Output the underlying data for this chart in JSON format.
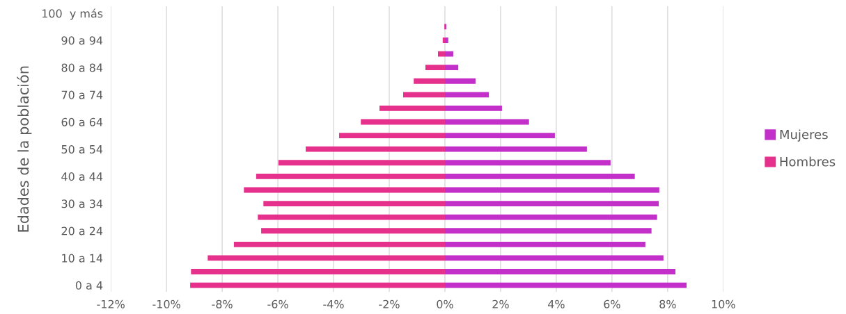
{
  "chart_data": {
    "type": "bar",
    "orientation": "horizontal",
    "ylabel": "Edades de la población",
    "categories": [
      "100  y más",
      null,
      "90 a 94",
      null,
      "80 a 84",
      null,
      "70 a 74",
      null,
      "60 a 64",
      null,
      "50 a 54",
      null,
      "40 a 44",
      null,
      "30 a 34",
      null,
      "20 a 24",
      null,
      "10 a 14",
      null,
      "0 a 4"
    ],
    "series": [
      {
        "name": "Mujeres",
        "color": "#c32fc9",
        "values": [
          null,
          0.05,
          0.12,
          0.3,
          0.48,
          1.1,
          1.58,
          2.05,
          3.02,
          3.95,
          5.1,
          5.95,
          6.82,
          7.7,
          7.68,
          7.62,
          7.42,
          7.2,
          7.85,
          8.28,
          8.68
        ]
      },
      {
        "name": "Hombres",
        "color": "#e5308c",
        "values": [
          null,
          -0.02,
          -0.08,
          -0.25,
          -0.7,
          -1.12,
          -1.5,
          -2.35,
          -3.02,
          -3.8,
          -5.0,
          -5.98,
          -6.78,
          -7.22,
          -6.52,
          -6.72,
          -6.6,
          -7.58,
          -8.52,
          -9.12,
          -9.15
        ]
      }
    ],
    "xlim": [
      -12,
      10
    ],
    "xticks": [
      {
        "value": -12,
        "label": "-12%"
      },
      {
        "value": -10,
        "label": "-10%"
      },
      {
        "value": -8,
        "label": "-8%"
      },
      {
        "value": -6,
        "label": "-6%"
      },
      {
        "value": -4,
        "label": "-4%"
      },
      {
        "value": -2,
        "label": "-2%"
      },
      {
        "value": 0,
        "label": "0%"
      },
      {
        "value": 2,
        "label": "2%"
      },
      {
        "value": 4,
        "label": "4%"
      },
      {
        "value": 6,
        "label": "6%"
      },
      {
        "value": 8,
        "label": "8%"
      },
      {
        "value": 10,
        "label": "10%"
      }
    ],
    "grid": "x",
    "legend": "right",
    "stacked": true
  }
}
